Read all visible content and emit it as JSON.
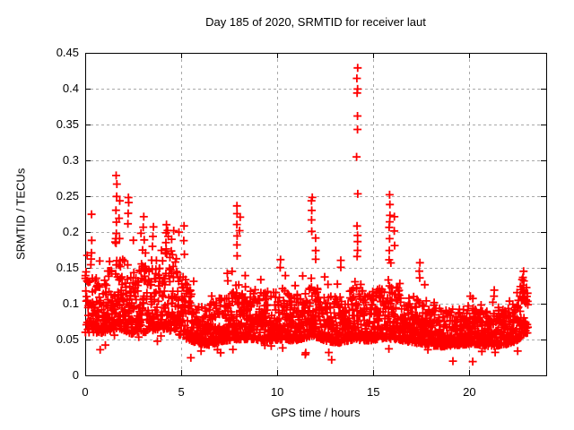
{
  "chart_data": {
    "type": "scatter",
    "title": "Day 185 of 2020, SRMTID for receiver laut",
    "xlabel": "GPS time / hours",
    "ylabel": "SRMTID / TECUs",
    "xlim": [
      0,
      24
    ],
    "ylim": [
      0,
      0.45
    ],
    "xticks": [
      [
        "0",
        0
      ],
      [
        "5",
        5
      ],
      [
        "10",
        10
      ],
      [
        "15",
        15
      ],
      [
        "20",
        20
      ]
    ],
    "yticks": [
      [
        "0",
        0
      ],
      [
        "0.05",
        0.05
      ],
      [
        "0.1",
        0.1
      ],
      [
        "0.15",
        0.15
      ],
      [
        "0.2",
        0.2
      ],
      [
        "0.25",
        0.25
      ],
      [
        "0.3",
        0.3
      ],
      [
        "0.35",
        0.35
      ],
      [
        "0.4",
        0.4
      ],
      [
        "0.45",
        0.45
      ]
    ],
    "grid": true,
    "legend": "none",
    "marker": "plus",
    "marker_color": "#ff0000",
    "grid_color": "#a9a9a9",
    "frame_color": "#000000",
    "x_data_start": 0.0,
    "x_data_end": 23.05,
    "max_point": [
      14.16,
      0.43
    ],
    "band_envelope": [
      [
        0.0,
        0.06,
        0.15
      ],
      [
        0.7,
        0.058,
        0.135
      ],
      [
        1.3,
        0.062,
        0.15
      ],
      [
        1.8,
        0.065,
        0.175
      ],
      [
        2.4,
        0.058,
        0.15
      ],
      [
        3.2,
        0.06,
        0.16
      ],
      [
        4.0,
        0.065,
        0.185
      ],
      [
        4.7,
        0.06,
        0.165
      ],
      [
        5.2,
        0.052,
        0.14
      ],
      [
        5.8,
        0.045,
        0.105
      ],
      [
        6.5,
        0.042,
        0.1
      ],
      [
        7.2,
        0.048,
        0.11
      ],
      [
        7.9,
        0.05,
        0.13
      ],
      [
        8.6,
        0.05,
        0.12
      ],
      [
        9.4,
        0.048,
        0.115
      ],
      [
        10.2,
        0.05,
        0.12
      ],
      [
        11.0,
        0.048,
        0.112
      ],
      [
        11.8,
        0.055,
        0.13
      ],
      [
        12.5,
        0.048,
        0.112
      ],
      [
        13.2,
        0.045,
        0.108
      ],
      [
        14.0,
        0.05,
        0.125
      ],
      [
        14.8,
        0.048,
        0.115
      ],
      [
        15.6,
        0.052,
        0.125
      ],
      [
        16.2,
        0.05,
        0.125
      ],
      [
        17.0,
        0.046,
        0.112
      ],
      [
        17.8,
        0.042,
        0.1
      ],
      [
        18.6,
        0.04,
        0.095
      ],
      [
        19.4,
        0.042,
        0.092
      ],
      [
        20.2,
        0.044,
        0.094
      ],
      [
        21.0,
        0.04,
        0.09
      ],
      [
        21.8,
        0.042,
        0.092
      ],
      [
        22.5,
        0.048,
        0.105
      ],
      [
        23.05,
        0.06,
        0.14
      ]
    ],
    "peaks": [
      {
        "x": 0.35,
        "ys": [
          0.225,
          0.19
        ]
      },
      {
        "x": 1.62,
        "ys": [
          0.28,
          0.265,
          0.25,
          0.23,
          0.215,
          0.2,
          0.185
        ]
      },
      {
        "x": 1.78,
        "ys": [
          0.245,
          0.22,
          0.19
        ]
      },
      {
        "x": 2.25,
        "ys": [
          0.25,
          0.24,
          0.225,
          0.21
        ]
      },
      {
        "x": 3.05,
        "ys": [
          0.22,
          0.205,
          0.19
        ]
      },
      {
        "x": 3.5,
        "ys": [
          0.195,
          0.18
        ]
      },
      {
        "x": 4.2,
        "ys": [
          0.21,
          0.2,
          0.185,
          0.17
        ]
      },
      {
        "x": 4.5,
        "ys": [
          0.19,
          0.175
        ]
      },
      {
        "x": 5.15,
        "ys": [
          0.21,
          0.19,
          0.17
        ]
      },
      {
        "x": 7.9,
        "ys": [
          0.235,
          0.225,
          0.21,
          0.195,
          0.18,
          0.165
        ]
      },
      {
        "x": 8.05,
        "ys": [
          0.22,
          0.2
        ]
      },
      {
        "x": 10.15,
        "ys": [
          0.16,
          0.15
        ]
      },
      {
        "x": 11.8,
        "ys": [
          0.25,
          0.245,
          0.23,
          0.215,
          0.2
        ]
      },
      {
        "x": 12.0,
        "ys": [
          0.19,
          0.175,
          0.16
        ]
      },
      {
        "x": 13.3,
        "ys": [
          0.16,
          0.15
        ]
      },
      {
        "x": 14.16,
        "ys": [
          0.43,
          0.414,
          0.398,
          0.393,
          0.36,
          0.345,
          0.303,
          0.254,
          0.21,
          0.195,
          0.185,
          0.175,
          0.165
        ]
      },
      {
        "x": 15.85,
        "ys": [
          0.253,
          0.237,
          0.225,
          0.215,
          0.205,
          0.19,
          0.175,
          0.16
        ]
      },
      {
        "x": 16.1,
        "ys": [
          0.22,
          0.2,
          0.18
        ]
      },
      {
        "x": 17.4,
        "ys": [
          0.157,
          0.145,
          0.135
        ]
      },
      {
        "x": 21.3,
        "ys": [
          0.12,
          0.11
        ]
      },
      {
        "x": 22.8,
        "ys": [
          0.147,
          0.135,
          0.125,
          0.115
        ]
      }
    ],
    "render": {
      "n_points": 2400,
      "seed": 20200703,
      "skew": 1.7,
      "outlier_prob": 0.025,
      "low_outlier_prob": 0.01
    }
  }
}
